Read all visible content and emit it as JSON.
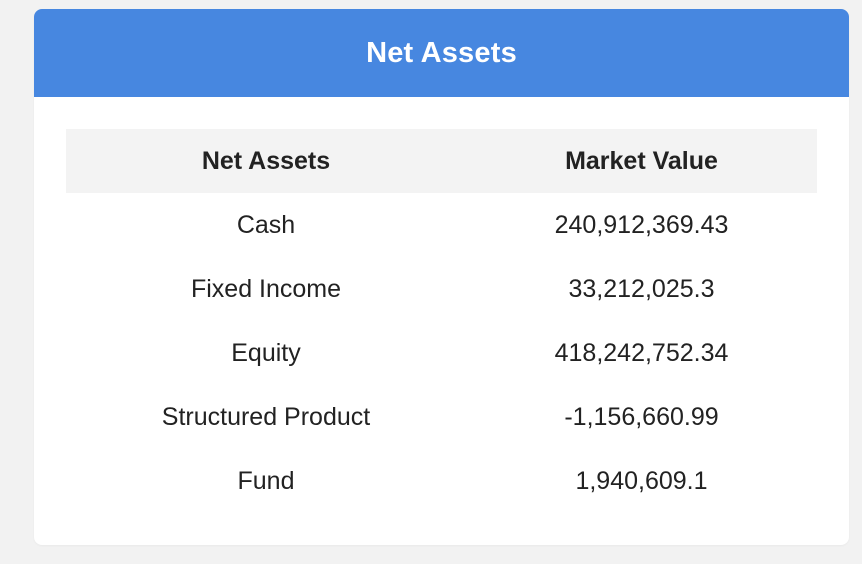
{
  "card": {
    "title": "Net Assets"
  },
  "table": {
    "headers": [
      "Net Assets",
      "Market Value"
    ],
    "rows": [
      {
        "name": "Cash",
        "value": "240,912,369.43"
      },
      {
        "name": "Fixed Income",
        "value": "33,212,025.3"
      },
      {
        "name": "Equity",
        "value": "418,242,752.34"
      },
      {
        "name": "Structured Product",
        "value": "-1,156,660.99"
      },
      {
        "name": "Fund",
        "value": "1,940,609.1"
      }
    ]
  },
  "colors": {
    "header_bg": "#4787e0",
    "page_bg": "#f2f2f2",
    "table_header_bg": "#f3f3f3"
  }
}
